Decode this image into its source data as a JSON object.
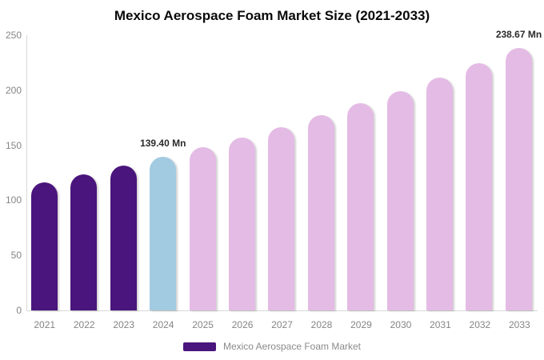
{
  "chart_data": {
    "type": "bar",
    "title": "Mexico Aerospace Foam Market Size (2021-2033)",
    "categories": [
      "2021",
      "2022",
      "2023",
      "2024",
      "2025",
      "2026",
      "2027",
      "2028",
      "2029",
      "2030",
      "2031",
      "2032",
      "2033"
    ],
    "values": [
      116.5,
      123.7,
      131.3,
      139.4,
      148.0,
      157.1,
      166.8,
      177.0,
      187.9,
      199.5,
      211.8,
      224.8,
      238.67
    ],
    "unit": "Mn",
    "ylim": [
      0,
      250
    ],
    "yticks": [
      0,
      50,
      100,
      150,
      200,
      250
    ],
    "grid": false,
    "legend_position": "bottom",
    "bar_colors": [
      "#4A157C",
      "#4A157C",
      "#4A157C",
      "#A2CBE2",
      "#E4BBE5",
      "#E4BBE5",
      "#E4BBE5",
      "#E4BBE5",
      "#E4BBE5",
      "#E4BBE5",
      "#E4BBE5",
      "#E4BBE5",
      "#E4BBE5"
    ],
    "data_labels": [
      {
        "index": 3,
        "text": "139.40 Mn"
      },
      {
        "index": 12,
        "text": "238.67 Mn"
      }
    ]
  },
  "legend": {
    "label": "Mexico Aerospace Foam Market",
    "swatch_color": "#4A157C"
  },
  "colors": {
    "historical_bar": "#4A157C",
    "current_year_bar": "#A2CBE2",
    "forecast_bar": "#E4BBE5",
    "axis_line": "#D9D9D9",
    "tick_text": "#858585",
    "title_text": "#0A0A0A",
    "value_label_text": "#2B2B2B",
    "background": "#FFFFFF"
  }
}
